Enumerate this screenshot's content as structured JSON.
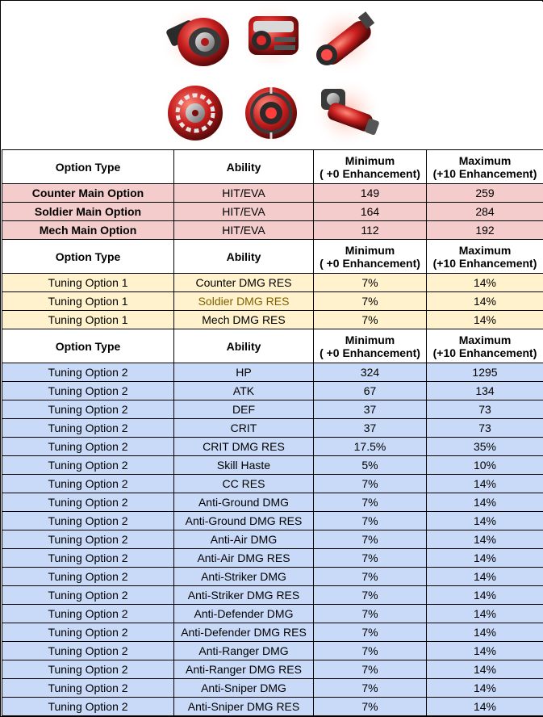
{
  "banner": {
    "icons": [
      "turbine-core-icon",
      "armored-scope-icon",
      "laser-cannon-icon",
      "gear-sphere-icon",
      "targeting-orb-icon",
      "mech-arm-icon"
    ],
    "accent_color": "#d42a2a"
  },
  "table": {
    "headers": {
      "option_type": "Option Type",
      "ability": "Ability",
      "min_line1": "Minimum",
      "min_line2": "( +0 Enhancement)",
      "max_line1": "Maximum",
      "max_line2": "(+10 Enhancement)"
    },
    "main_options": [
      {
        "type": "Counter Main Option",
        "ability": "HIT/EVA",
        "min": "149",
        "max": "259"
      },
      {
        "type": "Soldier Main Option",
        "ability": "HIT/EVA",
        "min": "164",
        "max": "284"
      },
      {
        "type": "Mech Main Option",
        "ability": "HIT/EVA",
        "min": "112",
        "max": "192"
      }
    ],
    "tuning_1": [
      {
        "type": "Tuning Option 1",
        "ability": "Counter DMG RES",
        "min": "7%",
        "max": "14%"
      },
      {
        "type": "Tuning Option 1",
        "ability": "Soldier DMG RES",
        "min": "7%",
        "max": "14%"
      },
      {
        "type": "Tuning Option 1",
        "ability": "Mech DMG RES",
        "min": "7%",
        "max": "14%"
      }
    ],
    "tuning_2": [
      {
        "type": "Tuning Option 2",
        "ability": "HP",
        "min": "324",
        "max": "1295"
      },
      {
        "type": "Tuning Option 2",
        "ability": "ATK",
        "min": "67",
        "max": "134"
      },
      {
        "type": "Tuning Option 2",
        "ability": "DEF",
        "min": "37",
        "max": "73"
      },
      {
        "type": "Tuning Option 2",
        "ability": "CRIT",
        "min": "37",
        "max": "73"
      },
      {
        "type": "Tuning Option 2",
        "ability": "CRIT DMG RES",
        "min": "17.5%",
        "max": "35%"
      },
      {
        "type": "Tuning Option 2",
        "ability": "Skill Haste",
        "min": "5%",
        "max": "10%"
      },
      {
        "type": "Tuning Option 2",
        "ability": "CC RES",
        "min": "7%",
        "max": "14%"
      },
      {
        "type": "Tuning Option 2",
        "ability": "Anti-Ground DMG",
        "min": "7%",
        "max": "14%"
      },
      {
        "type": "Tuning Option 2",
        "ability": "Anti-Ground DMG RES",
        "min": "7%",
        "max": "14%"
      },
      {
        "type": "Tuning Option 2",
        "ability": "Anti-Air DMG",
        "min": "7%",
        "max": "14%"
      },
      {
        "type": "Tuning Option 2",
        "ability": "Anti-Air DMG RES",
        "min": "7%",
        "max": "14%"
      },
      {
        "type": "Tuning Option 2",
        "ability": "Anti-Striker DMG",
        "min": "7%",
        "max": "14%"
      },
      {
        "type": "Tuning Option 2",
        "ability": "Anti-Striker DMG RES",
        "min": "7%",
        "max": "14%"
      },
      {
        "type": "Tuning Option 2",
        "ability": "Anti-Defender DMG",
        "min": "7%",
        "max": "14%"
      },
      {
        "type": "Tuning Option 2",
        "ability": "Anti-Defender DMG RES",
        "min": "7%",
        "max": "14%"
      },
      {
        "type": "Tuning Option 2",
        "ability": "Anti-Ranger DMG",
        "min": "7%",
        "max": "14%"
      },
      {
        "type": "Tuning Option 2",
        "ability": "Anti-Ranger DMG RES",
        "min": "7%",
        "max": "14%"
      },
      {
        "type": "Tuning Option 2",
        "ability": "Anti-Sniper DMG",
        "min": "7%",
        "max": "14%"
      },
      {
        "type": "Tuning Option 2",
        "ability": "Anti-Sniper DMG RES",
        "min": "7%",
        "max": "14%"
      }
    ]
  }
}
